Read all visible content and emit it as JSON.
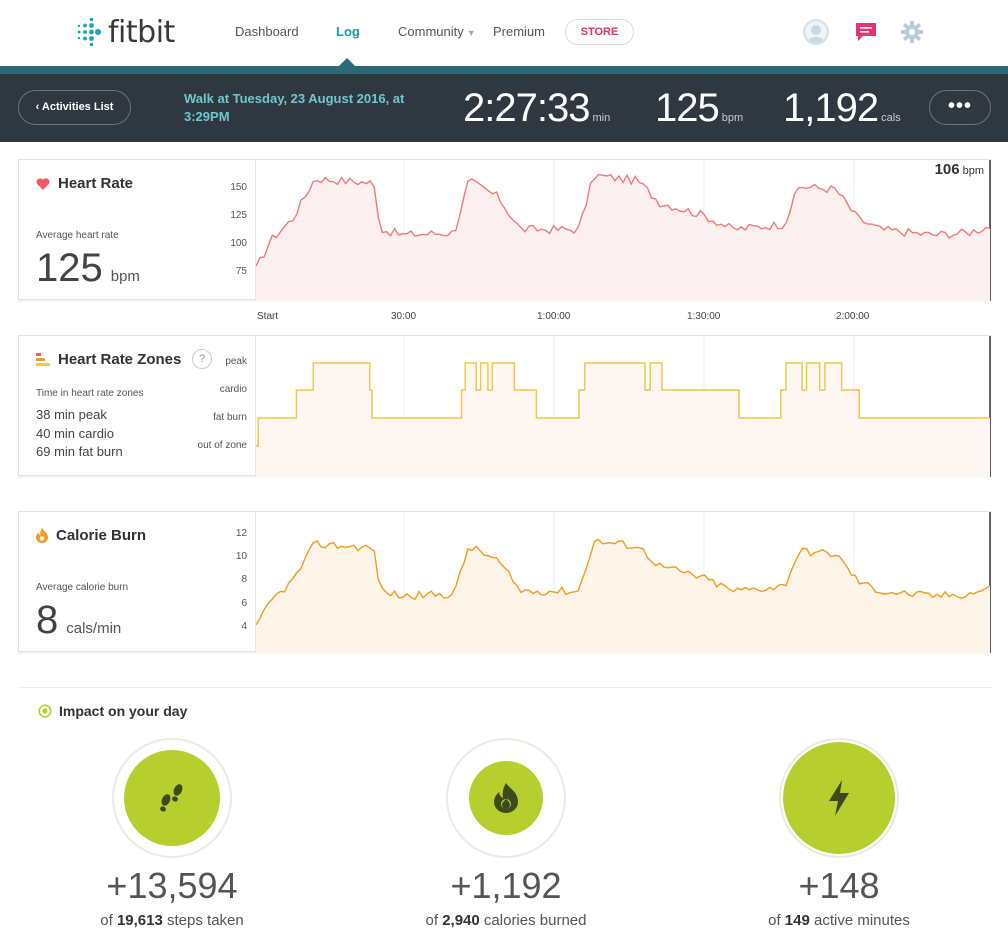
{
  "nav": {
    "brand": "fitbit",
    "links": [
      "Dashboard",
      "Log",
      "Community",
      "Premium"
    ],
    "store": "STORE",
    "active": "Log"
  },
  "activity": {
    "back": "Activities List",
    "title": "Walk at Tuesday, 23 August 2016, at 3:29PM",
    "duration": "2:27:33",
    "duration_unit": "min",
    "heart": "125",
    "heart_unit": "bpm",
    "cals": "1,192",
    "cals_unit": "cals",
    "more": "•••"
  },
  "heart_rate": {
    "title": "Heart Rate",
    "avg_label": "Average heart rate",
    "avg_value": "125",
    "avg_unit": "bpm",
    "current_value": "106",
    "current_unit": "bpm",
    "y_ticks": [
      "150",
      "125",
      "100",
      "75"
    ]
  },
  "x_axis": [
    "Start",
    "30:00",
    "1:00:00",
    "1:30:00",
    "2:00:00"
  ],
  "zones": {
    "title": "Heart Rate Zones",
    "help": "?",
    "sub": "Time in heart rate zones",
    "items": [
      "38 min peak",
      "40 min cardio",
      "69 min fat burn"
    ],
    "levels": [
      "peak",
      "cardio",
      "fat burn",
      "out of zone"
    ]
  },
  "calories": {
    "title": "Calorie Burn",
    "avg_label": "Average calorie burn",
    "avg_value": "8",
    "avg_unit": "cals/min",
    "y_ticks": [
      "12",
      "10",
      "8",
      "6",
      "4"
    ]
  },
  "impact": {
    "title": "Impact on your day",
    "items": [
      {
        "value": "+13,594",
        "of": "of",
        "total": "19,613",
        "label": "steps taken",
        "icon": "footsteps-icon"
      },
      {
        "value": "+1,192",
        "of": "of",
        "total": "2,940",
        "label": "calories burned",
        "icon": "flame-icon"
      },
      {
        "value": "+148",
        "of": "of",
        "total": "149",
        "label": "active minutes",
        "icon": "lightning-icon"
      }
    ]
  },
  "colors": {
    "teal": "#2a6a74",
    "header_bg": "#2f3740",
    "heart_line": "#ef7b7b",
    "zone_line": "#f0c94a",
    "calorie_line": "#f39c1f",
    "impact_green": "#b6cf2f",
    "store_pink": "#e0316d"
  }
}
